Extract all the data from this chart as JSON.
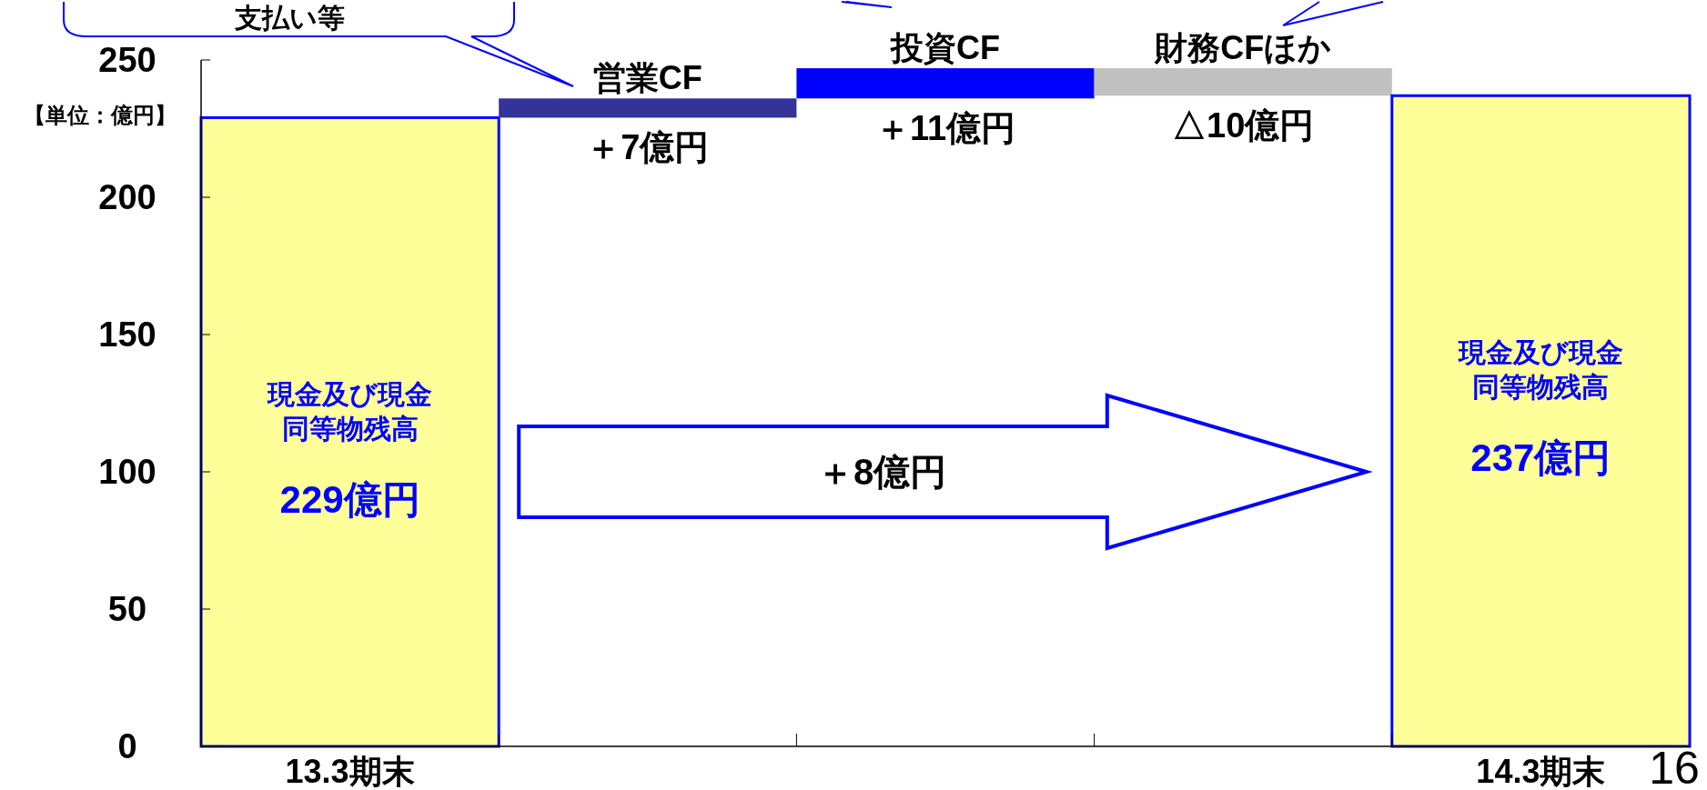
{
  "chart_data": {
    "type": "bar",
    "ylabel": "【単位：億円】",
    "categories": [
      "13.3期末",
      "営業CF",
      "投資CF",
      "財務CFほか",
      "14.3期末"
    ],
    "base": [
      0,
      229,
      236,
      247,
      0
    ],
    "values": [
      229,
      7,
      11,
      -10,
      237
    ],
    "colors": [
      "#ffff99",
      "#333399",
      "#0000ff",
      "#c0c0c0",
      "#ffff99"
    ],
    "value_labels": [
      "229億円",
      "＋7億円",
      "＋11億円",
      "△10億円",
      "237億円"
    ],
    "ylim": [
      0,
      250
    ],
    "yticks": [
      0,
      50,
      100,
      150,
      200,
      250
    ],
    "annotations": [
      "現金及び現金同等物残高",
      "現金及び現金同等物残高",
      "＋8億円",
      "支払い等",
      "16"
    ]
  }
}
